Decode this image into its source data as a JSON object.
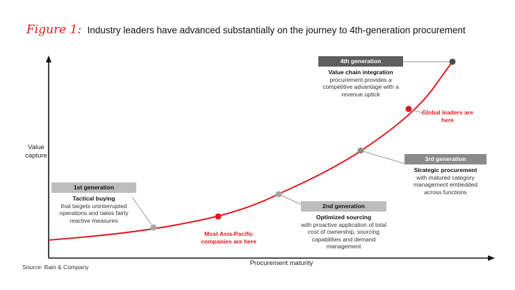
{
  "figure_label": "Figure 1:",
  "title": "Industry leaders have advanced substantially on the journey to 4th-generation procurement",
  "y_axis_label": "Value capture",
  "x_axis_label": "Procurement maturity",
  "source": "Source: Bain & Company",
  "colors": {
    "accent_red": "#e0191f",
    "stage_grey": "#a6a6a6",
    "dark_stage": "#4d4d4d"
  },
  "stages": [
    {
      "header": "1st generation",
      "name": "Tactical buying",
      "description": "that targets uninterrupted operations and takes fairly reactive measures"
    },
    {
      "header": "2nd generation",
      "name": "Optimized sourcing",
      "description": "with proactive application of total cost of ownership, sourcing capabilities and demand management"
    },
    {
      "header": "3rd generation",
      "name": "Strategic procurement",
      "description": "with matured category management embedded across functions"
    },
    {
      "header": "4th generation",
      "name": "Value chain integration",
      "description": "procurement provides a competitive advantage with a revenue uptick"
    }
  ],
  "callouts": {
    "asia_pacific": "Most Asia-Pacific companies are here",
    "global_leaders": "Global leaders are here"
  }
}
